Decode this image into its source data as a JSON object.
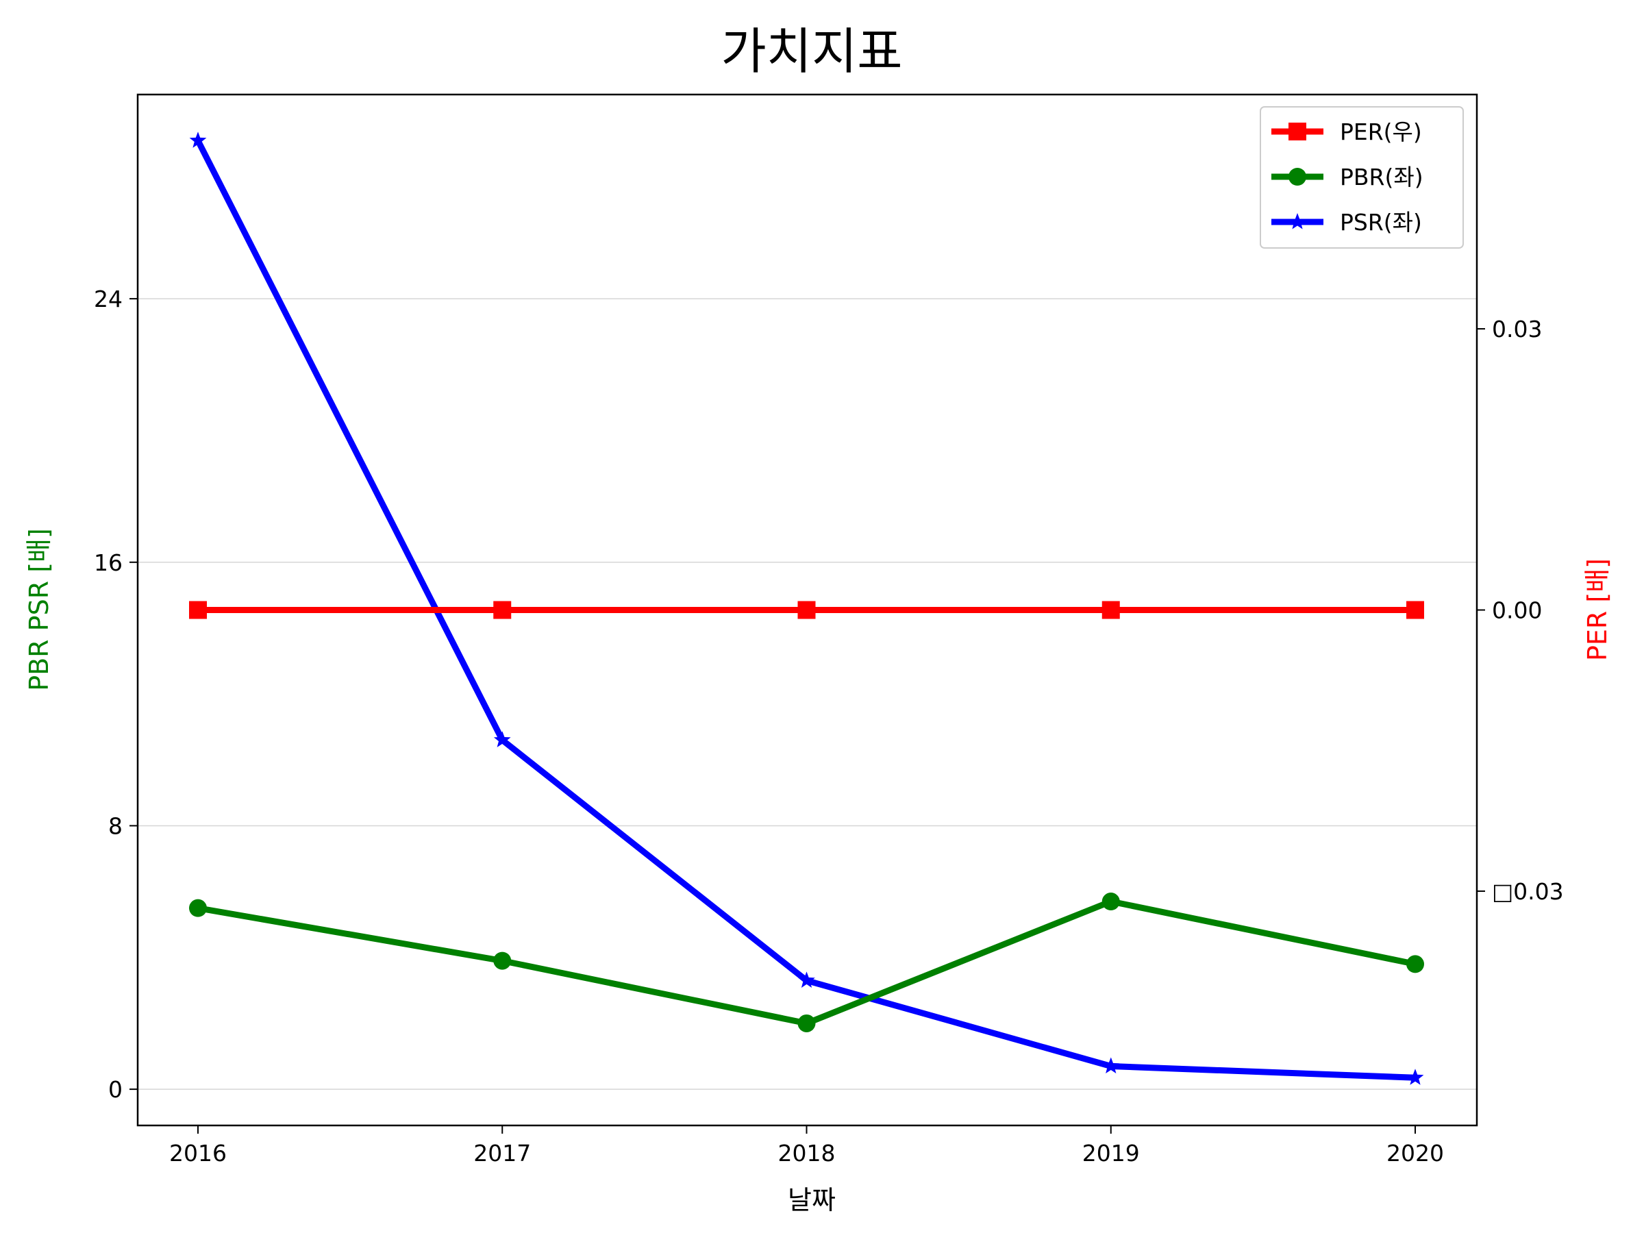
{
  "chart_data": {
    "type": "line",
    "title": "가치지표",
    "xlabel": "날짜",
    "ylabel_left": "PBR PSR [배]",
    "ylabel_right": "PER [배]",
    "ylabel_left_color": "#008000",
    "ylabel_right_color": "#ff0000",
    "x": [
      "2016",
      "2017",
      "2018",
      "2019",
      "2020"
    ],
    "y_left_ticks": [
      "0",
      "8",
      "16",
      "24"
    ],
    "y_left_lim": [
      -1.1,
      30.2
    ],
    "y_right_ticks": [
      "□0.03",
      "0.00",
      "0.03"
    ],
    "y_right_tick_values": [
      -0.03,
      0.0,
      0.03
    ],
    "y_right_lim": [
      -0.055,
      0.055
    ],
    "grid": "horizontal",
    "legend_position": "top-right",
    "series": [
      {
        "name": "PER(우)",
        "axis": "right",
        "color": "#ff0000",
        "marker": "square",
        "values": [
          0,
          0,
          0,
          0,
          0
        ]
      },
      {
        "name": "PBR(좌)",
        "axis": "left",
        "color": "#008000",
        "marker": "circle",
        "values": [
          5.5,
          3.9,
          2.0,
          5.7,
          3.8
        ]
      },
      {
        "name": "PSR(좌)",
        "axis": "left",
        "color": "#0000ff",
        "marker": "star",
        "values": [
          28.8,
          10.6,
          3.3,
          0.7,
          0.35
        ]
      }
    ]
  }
}
